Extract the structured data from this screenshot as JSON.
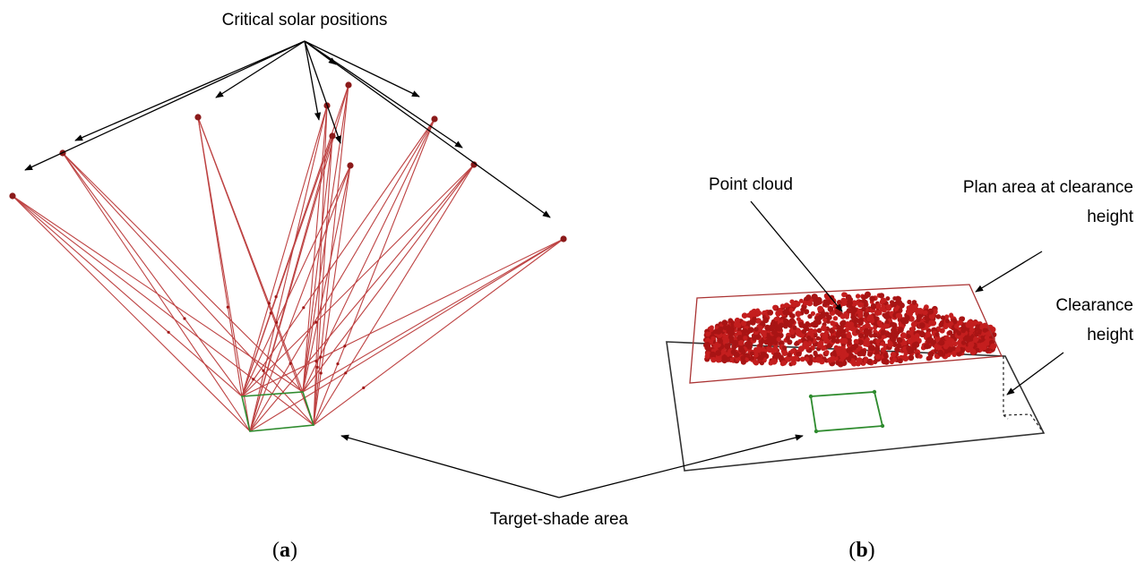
{
  "labels": {
    "critical_solar_positions": "Critical solar positions",
    "point_cloud": "Point cloud",
    "plan_area_line1": "Plan area at clearance",
    "plan_area_line2": "height",
    "clearance_line1": "Clearance",
    "clearance_line2": "height",
    "target_shade_area": "Target-shade area"
  },
  "panels": {
    "a": {
      "open": "(",
      "letter": "a",
      "close": ")"
    },
    "b": {
      "open": "(",
      "letter": "b",
      "close": ")"
    }
  },
  "colors": {
    "ray": "#b22222",
    "sun": "#8b1a1a",
    "target": "#2e8b2e",
    "cloud": "#c41e1e",
    "outline": "#333333",
    "arrow": "#000000"
  },
  "icons": {
    "arrowhead": "arrowhead-icon",
    "sun": "sun-position-icon"
  }
}
